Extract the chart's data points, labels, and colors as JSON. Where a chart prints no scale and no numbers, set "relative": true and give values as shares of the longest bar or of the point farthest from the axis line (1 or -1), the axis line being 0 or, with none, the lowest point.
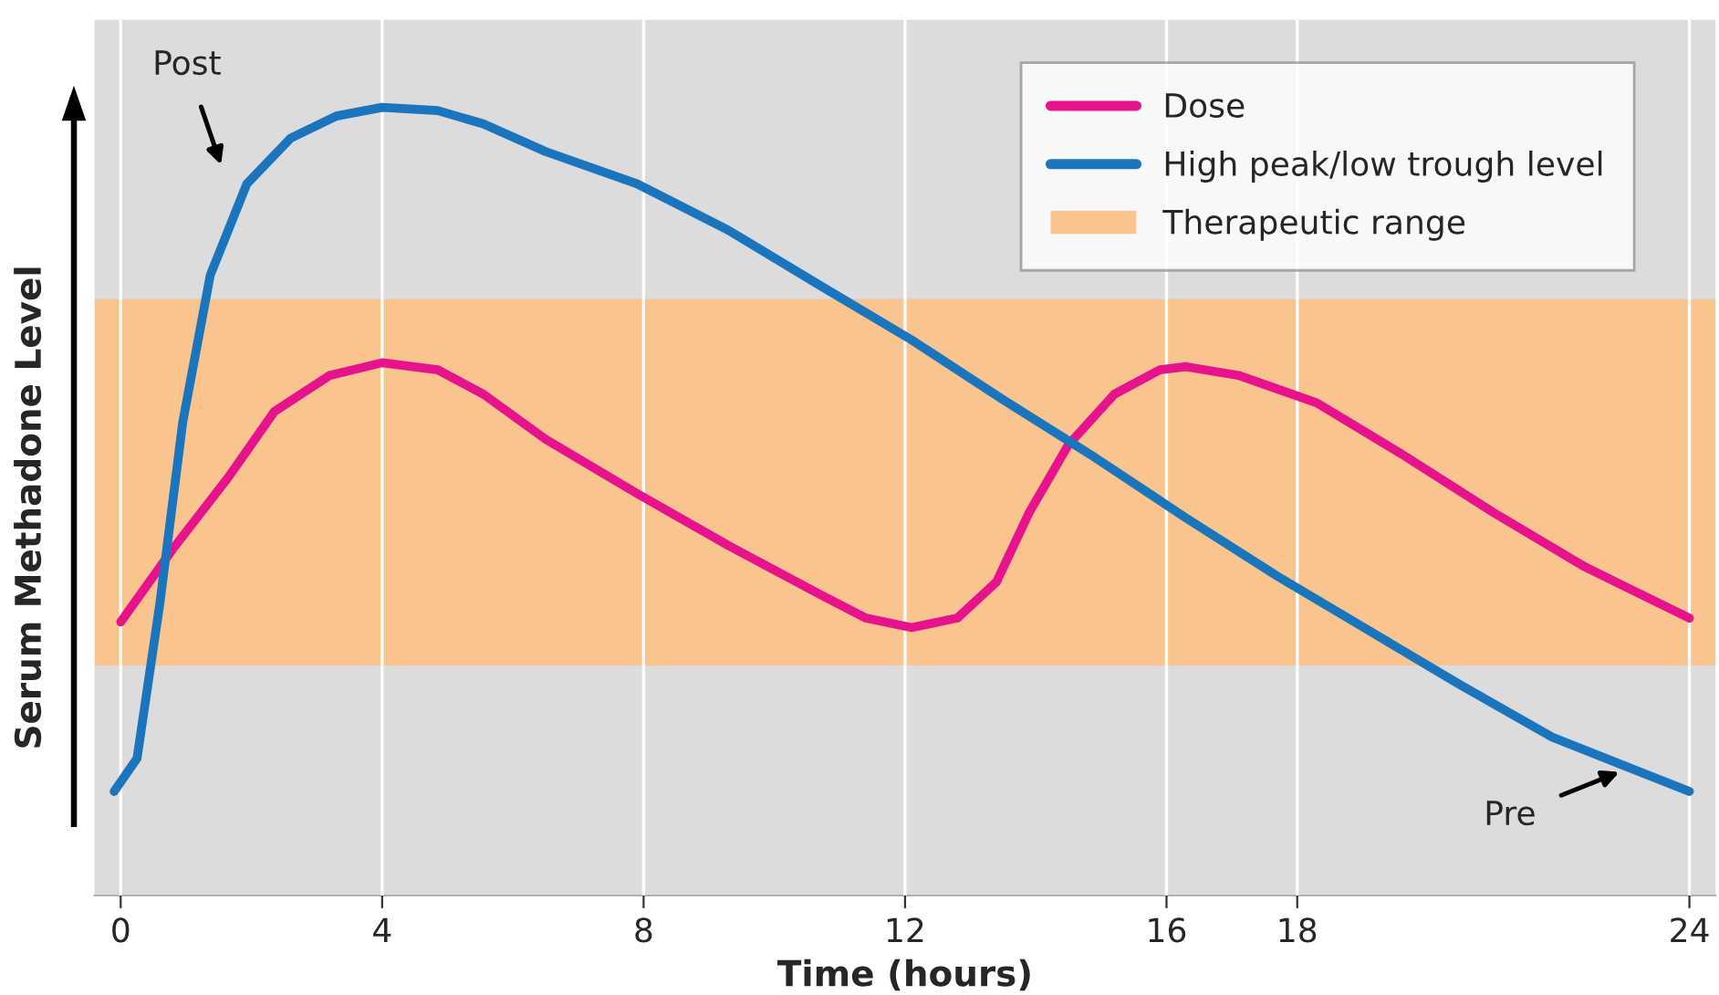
{
  "chart_data": {
    "type": "line",
    "relative": true,
    "xlabel": "Time (hours)",
    "ylabel": "Serum Methadone Level",
    "xlim": [
      -0.4,
      24.4
    ],
    "xticks": [
      0,
      4,
      8,
      12,
      16,
      18,
      24
    ],
    "grid": "x",
    "legend": "top right",
    "line_style": "solid",
    "marker": "none",
    "series": [
      {
        "name": "Dose",
        "color": "#e6138c",
        "x": [
          0,
          0.8,
          1.65,
          2.35,
          3.2,
          4,
          4.85,
          5.55,
          6.5,
          7.9,
          9.3,
          10.7,
          11.4,
          12.1,
          12.8,
          13.4,
          13.9,
          14.5,
          15.2,
          15.9,
          16.3,
          17.1,
          18.3,
          19.6,
          21.0,
          22.4,
          24
        ],
        "values": [
          0.347,
          0.44,
          0.531,
          0.614,
          0.66,
          0.676,
          0.667,
          0.636,
          0.579,
          0.51,
          0.444,
          0.382,
          0.352,
          0.34,
          0.352,
          0.398,
          0.486,
          0.572,
          0.636,
          0.667,
          0.671,
          0.66,
          0.625,
          0.56,
          0.486,
          0.417,
          0.352
        ]
      },
      {
        "name": "High peak/low trough level",
        "color": "#1a75bc",
        "x": [
          -0.1,
          0.25,
          0.6,
          0.95,
          1.37,
          1.93,
          2.6,
          3.3,
          4.0,
          4.85,
          5.55,
          6.5,
          7.9,
          9.3,
          10.7,
          12.1,
          13.5,
          14.9,
          16.3,
          17.7,
          19.1,
          20.5,
          21.9,
          24
        ],
        "values": [
          0.132,
          0.174,
          0.371,
          0.601,
          0.787,
          0.903,
          0.961,
          0.989,
          1,
          0.996,
          0.979,
          0.944,
          0.903,
          0.844,
          0.774,
          0.705,
          0.629,
          0.556,
          0.479,
          0.405,
          0.336,
          0.267,
          0.201,
          0.132
        ]
      }
    ],
    "bands": [
      {
        "axis": "y",
        "from": 0.292,
        "to": 0.757,
        "label": "Therapeutic range",
        "color": "#f9c48e"
      }
    ],
    "annotations": [
      "Post",
      {
        "text": "Pre",
        "x": 23.0,
        "y": 0.159
      }
    ]
  }
}
